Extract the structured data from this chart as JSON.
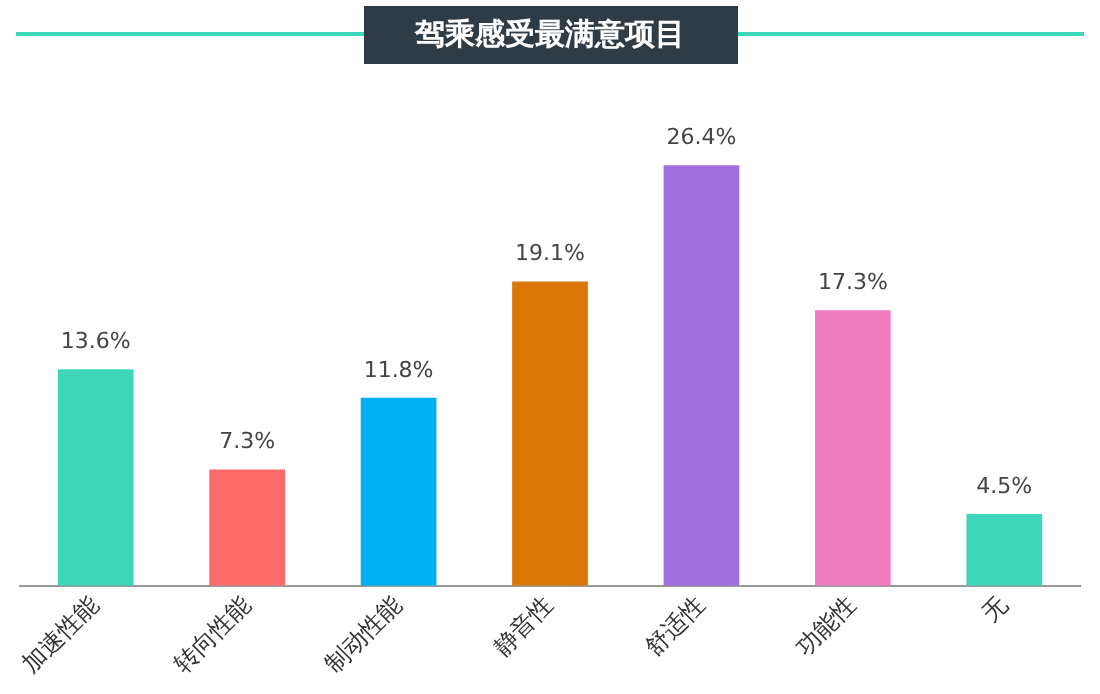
{
  "chart_data": {
    "type": "bar",
    "title": "驾乘感受最满意项目",
    "categories": [
      "加速性能",
      "转向性能",
      "制动性能",
      "静音性",
      "舒适性",
      "功能性",
      "无"
    ],
    "values": [
      13.6,
      7.3,
      11.8,
      19.1,
      26.4,
      17.3,
      4.5
    ],
    "colors": [
      "#3dd6b9",
      "#ff6b6b",
      "#00b0f0",
      "#d97706",
      "#a070e0",
      "#f07cc0",
      "#3dd6b9"
    ],
    "value_labels": [
      "13.6%",
      "7.3%",
      "11.8%",
      "19.1%",
      "26.4%",
      "17.3%",
      "4.5%"
    ],
    "grid": false,
    "legend": false
  }
}
